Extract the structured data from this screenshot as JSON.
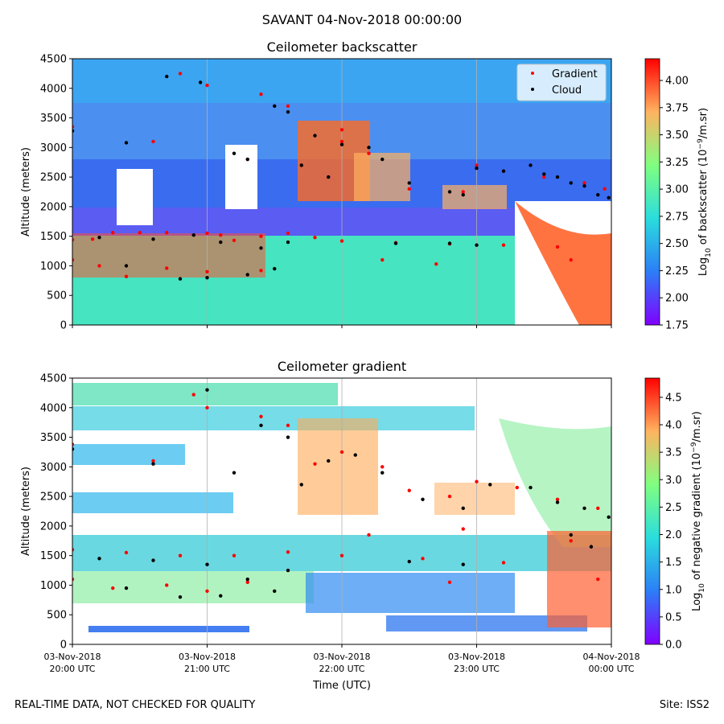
{
  "figure": {
    "suptitle": "SAVANT 04-Nov-2018 00:00:00",
    "footer_left": "REAL-TIME DATA, NOT CHECKED FOR QUALITY",
    "footer_right": "Site: ISS2"
  },
  "chart_data": [
    {
      "type": "heatmap",
      "title": "Ceilometer backscatter",
      "ylabel": "Altitude (meters)",
      "ylim": [
        0,
        4500
      ],
      "yticks": [
        0,
        500,
        1000,
        1500,
        2000,
        2500,
        3000,
        3500,
        4000,
        4500
      ],
      "xlim": [
        "2018-11-03 20:00",
        "2018-11-04 00:00"
      ],
      "xticks": [
        "2018-11-03 20:00",
        "2018-11-03 21:00",
        "2018-11-03 22:00",
        "2018-11-03 23:00",
        "2018-11-04 00:00"
      ],
      "colorbar": {
        "label_prefix": "Log",
        "label_sub": "10",
        "label_mid": " of backscatter (10",
        "label_sup": "−9",
        "label_suffix": "/m.sr)",
        "range": [
          1.75,
          4.2
        ],
        "ticks": [
          "1.75",
          "2.00",
          "2.25",
          "2.50",
          "2.75",
          "3.00",
          "3.25",
          "3.50",
          "3.75",
          "4.00"
        ],
        "colormap": "rainbow"
      },
      "legend": {
        "placement": "top-right",
        "entries": [
          {
            "label": "Gradient",
            "color": "#ff0000"
          },
          {
            "label": "Cloud",
            "color": "#000000"
          }
        ]
      },
      "series": [
        {
          "name": "Gradient",
          "color": "#ff0000",
          "points": [
            [
              0.0,
              1440
            ],
            [
              0.15,
              1450
            ],
            [
              0.3,
              1560
            ],
            [
              0.5,
              1560
            ],
            [
              0.7,
              1560
            ],
            [
              1.0,
              1550
            ],
            [
              1.1,
              1520
            ],
            [
              1.2,
              1430
            ],
            [
              1.4,
              1500
            ],
            [
              1.6,
              1550
            ],
            [
              1.8,
              1480
            ],
            [
              2.0,
              1420
            ],
            [
              2.4,
              1390
            ],
            [
              2.8,
              1370
            ],
            [
              3.2,
              1350
            ],
            [
              3.6,
              1320
            ],
            [
              0.0,
              1100
            ],
            [
              0.2,
              1000
            ],
            [
              0.4,
              820
            ],
            [
              0.7,
              960
            ],
            [
              1.0,
              900
            ],
            [
              1.4,
              920
            ],
            [
              2.3,
              1100
            ],
            [
              2.7,
              1030
            ],
            [
              3.7,
              1100
            ],
            [
              0.0,
              3350
            ],
            [
              0.6,
              3100
            ],
            [
              1.0,
              4050
            ],
            [
              1.3,
              2800
            ],
            [
              1.7,
              2700
            ],
            [
              2.0,
              3100
            ],
            [
              2.2,
              2900
            ],
            [
              2.5,
              2300
            ],
            [
              2.9,
              2250
            ],
            [
              3.0,
              2700
            ],
            [
              3.2,
              2600
            ],
            [
              3.5,
              2500
            ],
            [
              3.8,
              2400
            ],
            [
              3.95,
              2300
            ],
            [
              0.8,
              4250
            ],
            [
              1.4,
              3900
            ],
            [
              1.6,
              3700
            ],
            [
              2.0,
              3300
            ]
          ]
        },
        {
          "name": "Cloud",
          "color": "#000000",
          "points": [
            [
              0.0,
              3280
            ],
            [
              0.4,
              3080
            ],
            [
              0.7,
              4200
            ],
            [
              0.95,
              4100
            ],
            [
              1.2,
              2900
            ],
            [
              1.3,
              2800
            ],
            [
              1.5,
              3700
            ],
            [
              1.6,
              3600
            ],
            [
              1.7,
              2700
            ],
            [
              1.8,
              3200
            ],
            [
              1.9,
              2500
            ],
            [
              2.0,
              3050
            ],
            [
              2.2,
              3000
            ],
            [
              2.3,
              2800
            ],
            [
              2.5,
              2400
            ],
            [
              2.8,
              2250
            ],
            [
              2.9,
              2200
            ],
            [
              3.0,
              2650
            ],
            [
              3.2,
              2600
            ],
            [
              3.4,
              2700
            ],
            [
              3.5,
              2550
            ],
            [
              3.6,
              2500
            ],
            [
              3.7,
              2400
            ],
            [
              3.8,
              2350
            ],
            [
              3.9,
              2200
            ],
            [
              3.98,
              2150
            ],
            [
              0.2,
              1480
            ],
            [
              0.6,
              1450
            ],
            [
              0.9,
              1520
            ],
            [
              1.1,
              1400
            ],
            [
              1.4,
              1300
            ],
            [
              1.6,
              1400
            ],
            [
              2.4,
              1380
            ],
            [
              2.8,
              1380
            ],
            [
              3.0,
              1350
            ],
            [
              0.4,
              1000
            ],
            [
              0.8,
              780
            ],
            [
              1.0,
              800
            ],
            [
              1.3,
              850
            ],
            [
              1.5,
              950
            ]
          ]
        }
      ]
    },
    {
      "type": "heatmap",
      "title": "Ceilometer gradient",
      "ylabel": "Altitude (meters)",
      "xlabel": "Time (UTC)",
      "ylim": [
        0,
        4500
      ],
      "yticks": [
        0,
        500,
        1000,
        1500,
        2000,
        2500,
        3000,
        3500,
        4000,
        4500
      ],
      "xlim": [
        "2018-11-03 20:00",
        "2018-11-04 00:00"
      ],
      "xticklabels": [
        [
          "03-Nov-2018",
          "20:00 UTC"
        ],
        [
          "03-Nov-2018",
          "21:00 UTC"
        ],
        [
          "03-Nov-2018",
          "22:00 UTC"
        ],
        [
          "03-Nov-2018",
          "23:00 UTC"
        ],
        [
          "04-Nov-2018",
          "00:00 UTC"
        ]
      ],
      "colorbar": {
        "label_prefix": "Log",
        "label_sub": "10",
        "label_mid": " of negative gradient (10",
        "label_sup": "−9",
        "label_suffix": "/m.sr)",
        "range": [
          0.0,
          4.85
        ],
        "ticks": [
          "0.0",
          "0.5",
          "1.0",
          "1.5",
          "2.0",
          "2.5",
          "3.0",
          "3.5",
          "4.0",
          "4.5"
        ],
        "colormap": "rainbow"
      },
      "series": [
        {
          "name": "Gradient",
          "color": "#ff0000",
          "points": [
            [
              0.0,
              3380
            ],
            [
              0.6,
              3100
            ],
            [
              0.9,
              4220
            ],
            [
              1.0,
              4000
            ],
            [
              1.4,
              3850
            ],
            [
              1.6,
              3700
            ],
            [
              1.8,
              3050
            ],
            [
              2.0,
              3250
            ],
            [
              2.3,
              3000
            ],
            [
              2.5,
              2600
            ],
            [
              2.8,
              2500
            ],
            [
              3.0,
              2750
            ],
            [
              3.3,
              2650
            ],
            [
              3.6,
              2450
            ],
            [
              3.9,
              2300
            ],
            [
              0.0,
              1600
            ],
            [
              0.4,
              1550
            ],
            [
              0.8,
              1500
            ],
            [
              1.2,
              1500
            ],
            [
              1.6,
              1560
            ],
            [
              2.0,
              1500
            ],
            [
              2.6,
              1450
            ],
            [
              3.2,
              1380
            ],
            [
              0.0,
              1100
            ],
            [
              0.3,
              950
            ],
            [
              0.7,
              1000
            ],
            [
              1.0,
              900
            ],
            [
              1.3,
              1050
            ],
            [
              2.8,
              1050
            ],
            [
              3.9,
              1100
            ],
            [
              2.2,
              1850
            ],
            [
              2.9,
              1950
            ],
            [
              3.7,
              1750
            ]
          ]
        },
        {
          "name": "Cloud",
          "color": "#000000",
          "points": [
            [
              0.0,
              3300
            ],
            [
              0.6,
              3050
            ],
            [
              1.0,
              4300
            ],
            [
              1.2,
              2900
            ],
            [
              1.4,
              3700
            ],
            [
              1.6,
              3500
            ],
            [
              1.7,
              2700
            ],
            [
              1.9,
              3100
            ],
            [
              2.1,
              3200
            ],
            [
              2.3,
              2900
            ],
            [
              2.6,
              2450
            ],
            [
              2.9,
              2300
            ],
            [
              3.1,
              2700
            ],
            [
              3.4,
              2650
            ],
            [
              3.6,
              2400
            ],
            [
              3.8,
              2300
            ],
            [
              3.98,
              2150
            ],
            [
              0.2,
              1450
            ],
            [
              0.6,
              1420
            ],
            [
              1.0,
              1350
            ],
            [
              1.3,
              1100
            ],
            [
              1.6,
              1250
            ],
            [
              2.5,
              1400
            ],
            [
              2.9,
              1350
            ],
            [
              0.4,
              950
            ],
            [
              0.8,
              800
            ],
            [
              1.1,
              820
            ],
            [
              1.5,
              900
            ],
            [
              3.7,
              1850
            ],
            [
              3.85,
              1650
            ]
          ]
        }
      ]
    }
  ]
}
